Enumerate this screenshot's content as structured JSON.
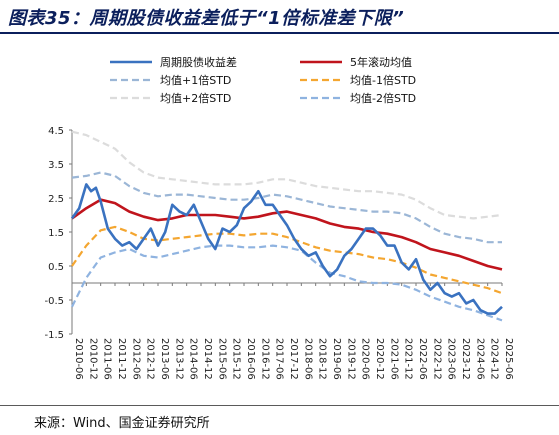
{
  "header": {
    "title": "图表35：周期股债收益差低于“1倍标准差下限”"
  },
  "footer": {
    "source": "来源：Wind、国金证券研究所"
  },
  "chart_data": {
    "type": "line",
    "title": "",
    "xlabel": "",
    "ylabel": "",
    "ylim": [
      -1.5,
      4.5
    ],
    "yticks": [
      "4.5",
      "3.5",
      "2.5",
      "1.5",
      "0.5",
      "-0.5",
      "-1.5"
    ],
    "ytick_values": [
      4.5,
      3.5,
      2.5,
      1.5,
      0.5,
      -0.5,
      -1.5
    ],
    "xlim": [
      "2010-06",
      "2025-06"
    ],
    "xticks": [
      "2010-06",
      "2010-12",
      "2011-06",
      "2011-12",
      "2012-06",
      "2012-12",
      "2013-06",
      "2013-12",
      "2014-06",
      "2014-12",
      "2015-06",
      "2015-12",
      "2016-06",
      "2016-12",
      "2017-06",
      "2017-12",
      "2018-06",
      "2018-12",
      "2019-06",
      "2019-12",
      "2020-06",
      "2020-12",
      "2021-06",
      "2021-12",
      "2022-06",
      "2022-12",
      "2023-06",
      "2023-12",
      "2024-06",
      "2024-12",
      "2025-06"
    ],
    "grid": false,
    "legend_position": "top",
    "series": [
      {
        "name": "周期股债收益差",
        "color": "#3a72c0",
        "style": "solid-thin-wide",
        "x": [
          "2010-06",
          "2010-09",
          "2010-12",
          "2011-02",
          "2011-04",
          "2011-06",
          "2011-09",
          "2011-12",
          "2012-03",
          "2012-06",
          "2012-09",
          "2012-12",
          "2013-03",
          "2013-06",
          "2013-09",
          "2013-12",
          "2014-03",
          "2014-06",
          "2014-09",
          "2014-12",
          "2015-03",
          "2015-06",
          "2015-09",
          "2015-12",
          "2016-03",
          "2016-06",
          "2016-09",
          "2016-12",
          "2017-03",
          "2017-06",
          "2017-09",
          "2017-12",
          "2018-03",
          "2018-06",
          "2018-09",
          "2018-12",
          "2019-03",
          "2019-06",
          "2019-09",
          "2019-12",
          "2020-03",
          "2020-06",
          "2020-09",
          "2020-12",
          "2021-03",
          "2021-06",
          "2021-09",
          "2021-12",
          "2022-03",
          "2022-06",
          "2022-09",
          "2022-12",
          "2023-03",
          "2023-06",
          "2023-09",
          "2023-12",
          "2024-03",
          "2024-06",
          "2024-09",
          "2024-12",
          "2025-03",
          "2025-06"
        ],
        "values": [
          1.9,
          2.2,
          2.9,
          2.7,
          2.8,
          2.4,
          1.6,
          1.3,
          1.1,
          1.2,
          1.0,
          1.3,
          1.6,
          1.1,
          1.5,
          2.3,
          2.1,
          2.0,
          2.3,
          1.8,
          1.3,
          1.0,
          1.6,
          1.5,
          1.7,
          2.2,
          2.4,
          2.7,
          2.3,
          2.3,
          2.0,
          1.7,
          1.3,
          1.0,
          0.8,
          0.9,
          0.5,
          0.2,
          0.4,
          0.8,
          1.0,
          1.3,
          1.6,
          1.6,
          1.4,
          1.1,
          1.1,
          0.6,
          0.4,
          0.7,
          0.1,
          -0.2,
          0.0,
          -0.3,
          -0.4,
          -0.3,
          -0.6,
          -0.5,
          -0.8,
          -0.9,
          -0.9,
          -0.7
        ]
      },
      {
        "name": "5年滚动均值",
        "color": "#c0141c",
        "style": "solid-thick",
        "x": [
          "2010-06",
          "2010-12",
          "2011-06",
          "2011-12",
          "2012-06",
          "2012-12",
          "2013-06",
          "2013-12",
          "2014-06",
          "2014-12",
          "2015-06",
          "2015-12",
          "2016-06",
          "2016-12",
          "2017-06",
          "2017-12",
          "2018-06",
          "2018-12",
          "2019-06",
          "2019-12",
          "2020-06",
          "2020-12",
          "2021-06",
          "2021-12",
          "2022-06",
          "2022-12",
          "2023-06",
          "2023-12",
          "2024-06",
          "2024-12",
          "2025-06"
        ],
        "values": [
          1.9,
          2.2,
          2.45,
          2.35,
          2.1,
          1.95,
          1.85,
          1.9,
          2.0,
          2.0,
          2.0,
          1.95,
          1.9,
          1.95,
          2.05,
          2.1,
          2.0,
          1.9,
          1.75,
          1.65,
          1.6,
          1.5,
          1.45,
          1.35,
          1.2,
          1.0,
          0.9,
          0.8,
          0.65,
          0.5,
          0.4
        ]
      },
      {
        "name": "均值+1倍STD",
        "color": "#9bb6d6",
        "style": "dashed",
        "x": [
          "2010-06",
          "2010-12",
          "2011-06",
          "2011-12",
          "2012-06",
          "2012-12",
          "2013-06",
          "2013-12",
          "2014-06",
          "2014-12",
          "2015-06",
          "2015-12",
          "2016-06",
          "2016-12",
          "2017-06",
          "2017-12",
          "2018-06",
          "2018-12",
          "2019-06",
          "2019-12",
          "2020-06",
          "2020-12",
          "2021-06",
          "2021-12",
          "2022-06",
          "2022-12",
          "2023-06",
          "2023-12",
          "2024-06",
          "2024-12",
          "2025-06"
        ],
        "values": [
          3.1,
          3.15,
          3.25,
          3.15,
          2.85,
          2.65,
          2.55,
          2.6,
          2.6,
          2.55,
          2.5,
          2.45,
          2.45,
          2.5,
          2.6,
          2.55,
          2.45,
          2.35,
          2.25,
          2.2,
          2.15,
          2.1,
          2.1,
          2.05,
          1.9,
          1.65,
          1.45,
          1.35,
          1.3,
          1.2,
          1.2
        ]
      },
      {
        "name": "均值-1倍STD",
        "color": "#f4a630",
        "style": "dashed",
        "x": [
          "2010-06",
          "2010-12",
          "2011-06",
          "2011-12",
          "2012-06",
          "2012-12",
          "2013-06",
          "2013-12",
          "2014-06",
          "2014-12",
          "2015-06",
          "2015-12",
          "2016-06",
          "2016-12",
          "2017-06",
          "2017-12",
          "2018-06",
          "2018-12",
          "2019-06",
          "2019-12",
          "2020-06",
          "2020-12",
          "2021-06",
          "2021-12",
          "2022-06",
          "2022-12",
          "2023-06",
          "2023-12",
          "2024-06",
          "2024-12",
          "2025-06"
        ],
        "values": [
          0.5,
          1.1,
          1.55,
          1.65,
          1.5,
          1.3,
          1.25,
          1.3,
          1.35,
          1.4,
          1.45,
          1.45,
          1.4,
          1.45,
          1.45,
          1.35,
          1.2,
          1.05,
          0.95,
          0.9,
          0.85,
          0.75,
          0.7,
          0.6,
          0.45,
          0.25,
          0.15,
          0.05,
          -0.05,
          -0.15,
          -0.3
        ]
      },
      {
        "name": "均值+2倍STD",
        "color": "#dcdcdc",
        "style": "dashed",
        "x": [
          "2010-06",
          "2010-12",
          "2011-06",
          "2011-12",
          "2012-06",
          "2012-12",
          "2013-06",
          "2013-12",
          "2014-06",
          "2014-12",
          "2015-06",
          "2015-12",
          "2016-06",
          "2016-12",
          "2017-06",
          "2017-12",
          "2018-06",
          "2018-12",
          "2019-06",
          "2019-12",
          "2020-06",
          "2020-12",
          "2021-06",
          "2021-12",
          "2022-06",
          "2022-12",
          "2023-06",
          "2023-12",
          "2024-06",
          "2024-12",
          "2025-06"
        ],
        "values": [
          4.45,
          4.35,
          4.15,
          3.95,
          3.55,
          3.25,
          3.1,
          3.05,
          3.0,
          2.95,
          2.9,
          2.9,
          2.9,
          2.95,
          3.05,
          3.05,
          2.95,
          2.85,
          2.8,
          2.75,
          2.7,
          2.7,
          2.65,
          2.6,
          2.45,
          2.2,
          2.0,
          1.95,
          1.9,
          1.95,
          2.0
        ]
      },
      {
        "name": "均值-2倍STD",
        "color": "#8fb3e0",
        "style": "dashed",
        "x": [
          "2010-06",
          "2010-12",
          "2011-06",
          "2011-12",
          "2012-06",
          "2012-12",
          "2013-06",
          "2013-12",
          "2014-06",
          "2014-12",
          "2015-06",
          "2015-12",
          "2016-06",
          "2016-12",
          "2017-06",
          "2017-12",
          "2018-06",
          "2018-12",
          "2019-06",
          "2019-12",
          "2020-06",
          "2020-12",
          "2021-06",
          "2021-12",
          "2022-06",
          "2022-12",
          "2023-06",
          "2023-12",
          "2024-06",
          "2024-12",
          "2025-06"
        ],
        "values": [
          -0.7,
          0.15,
          0.75,
          0.9,
          1.0,
          0.8,
          0.75,
          0.85,
          0.95,
          1.05,
          1.1,
          1.1,
          1.05,
          1.05,
          1.1,
          1.05,
          0.95,
          0.6,
          0.3,
          0.2,
          0.05,
          0.0,
          0.0,
          -0.05,
          -0.2,
          -0.4,
          -0.55,
          -0.7,
          -0.8,
          -0.95,
          -1.1
        ]
      }
    ]
  }
}
